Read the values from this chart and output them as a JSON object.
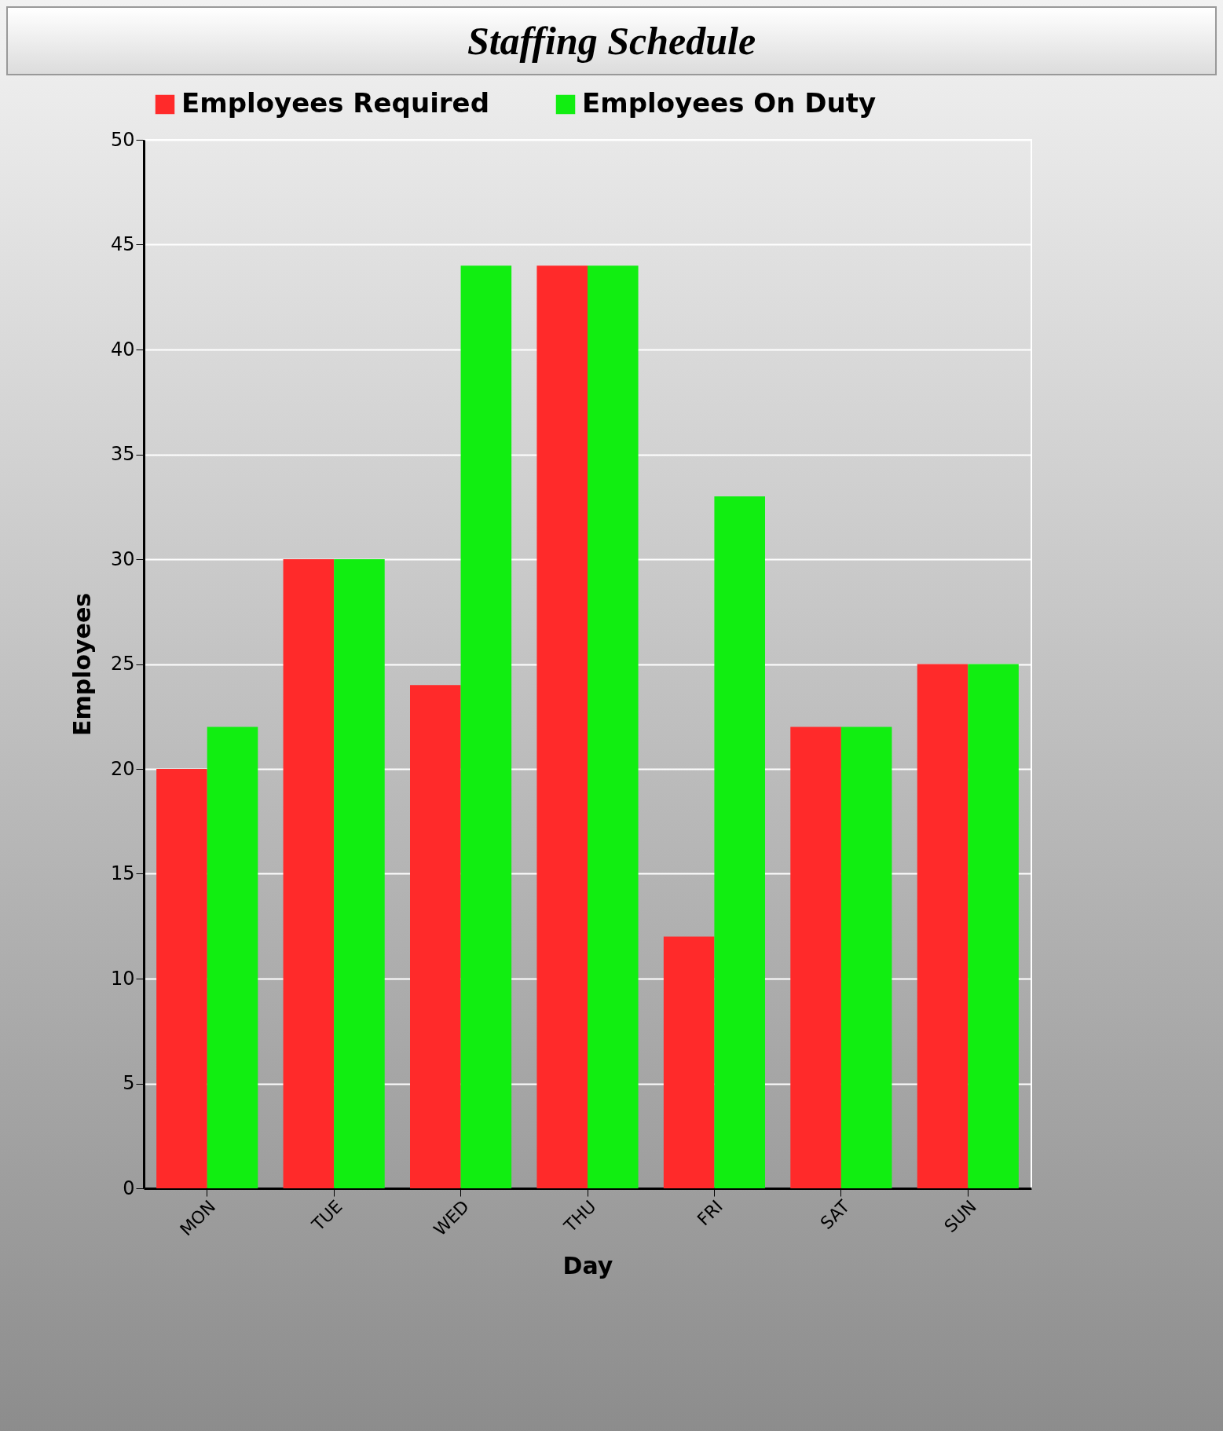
{
  "chart_data": {
    "type": "bar",
    "title": "Staffing Schedule",
    "xlabel": "Day",
    "ylabel": "Employees",
    "categories": [
      "MON",
      "TUE",
      "WED",
      "THU",
      "FRI",
      "SAT",
      "SUN"
    ],
    "series": [
      {
        "name": "Employees Required",
        "color": "#ff2a2a",
        "values": [
          20,
          30,
          24,
          44,
          12,
          22,
          25
        ]
      },
      {
        "name": "Employees On Duty",
        "color": "#11ee11",
        "values": [
          22,
          30,
          44,
          44,
          33,
          22,
          25
        ]
      }
    ],
    "ylim": [
      0,
      50
    ],
    "yticks": [
      0,
      5,
      10,
      15,
      20,
      25,
      30,
      35,
      40,
      45,
      50
    ],
    "grid": "y",
    "legend": "top left"
  }
}
